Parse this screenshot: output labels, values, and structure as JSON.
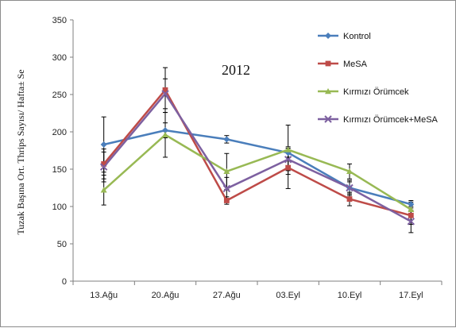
{
  "chart_data": {
    "type": "line",
    "title": "",
    "annotation": "2012",
    "xlabel": "",
    "ylabel": "Tuzak Başına Ort. Thrips Sayısı/ Hafta± Se",
    "categories": [
      "13.Ağu",
      "20.Ağu",
      "27.Ağu",
      "03.Eyl",
      "10.Eyl",
      "17.Eyl"
    ],
    "ylim": [
      0,
      350
    ],
    "yticks": [
      "0",
      "50",
      "100",
      "150",
      "200",
      "250",
      "300",
      "350"
    ],
    "grid": false,
    "legend_position": "top-right",
    "series": [
      {
        "name": "Kontrol",
        "color": "#4a7ebb",
        "marker": "diamond",
        "values": [
          183,
          202,
          190,
          172,
          125,
          103
        ],
        "errors": [
          37,
          10,
          5,
          6,
          8,
          5
        ]
      },
      {
        "name": "MeSA",
        "color": "#be4b48",
        "marker": "square",
        "values": [
          157,
          256,
          108,
          152,
          110,
          88
        ],
        "errors": [
          20,
          30,
          5,
          28,
          9,
          12
        ]
      },
      {
        "name": "Kırmızı Örümcek",
        "color": "#98b954",
        "marker": "triangle",
        "values": [
          122,
          196,
          147,
          176,
          147,
          96
        ],
        "errors": [
          20,
          30,
          24,
          33,
          10,
          10
        ]
      },
      {
        "name": "Kırmızı Örümcek+MeSA",
        "color": "#7d60a0",
        "marker": "x",
        "values": [
          153,
          251,
          124,
          163,
          125,
          80
        ],
        "errors": [
          20,
          20,
          15,
          15,
          10,
          15
        ]
      }
    ]
  }
}
